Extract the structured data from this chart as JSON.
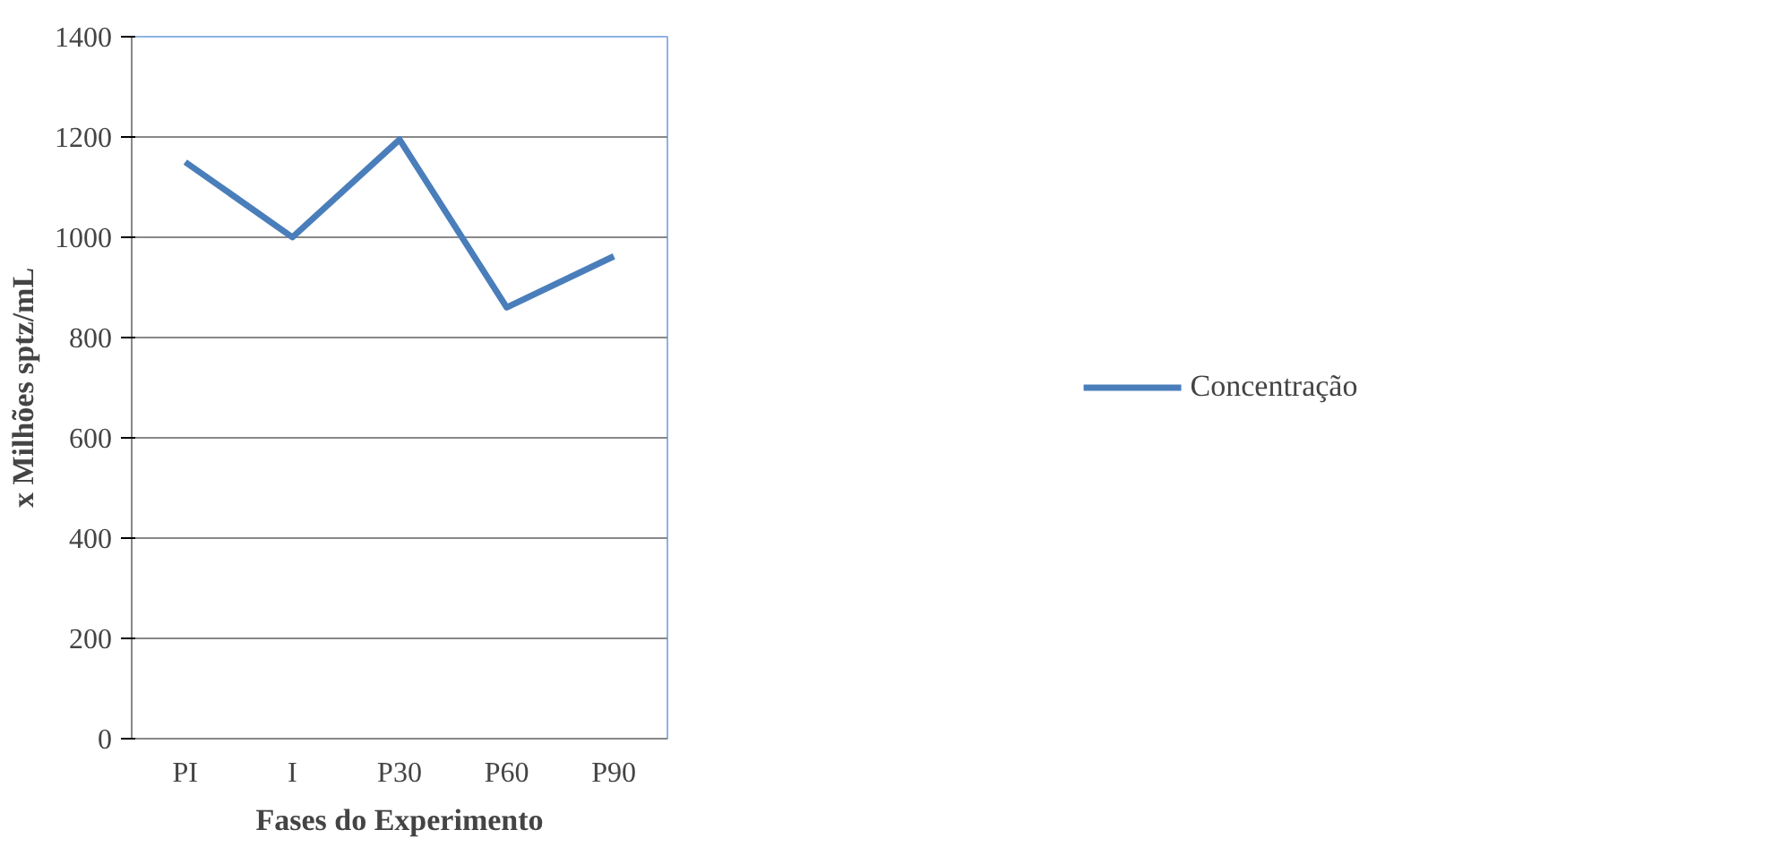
{
  "chart_data": {
    "type": "line",
    "xlabel": "Fases do Experimento",
    "ylabel": "x Milhões sptz/mL",
    "categories": [
      "PI",
      "I",
      "P30",
      "P60",
      "P90"
    ],
    "series": [
      {
        "name": "Concentração",
        "color": "#4a7ebb",
        "values": [
          1150,
          1000,
          1195,
          860,
          962
        ]
      }
    ],
    "ylim": [
      0,
      1400
    ],
    "yticks": [
      0,
      200,
      400,
      600,
      800,
      1000,
      1200,
      1400
    ],
    "grid": "y",
    "legend": "right",
    "marker": "none",
    "line_style": "solid"
  }
}
